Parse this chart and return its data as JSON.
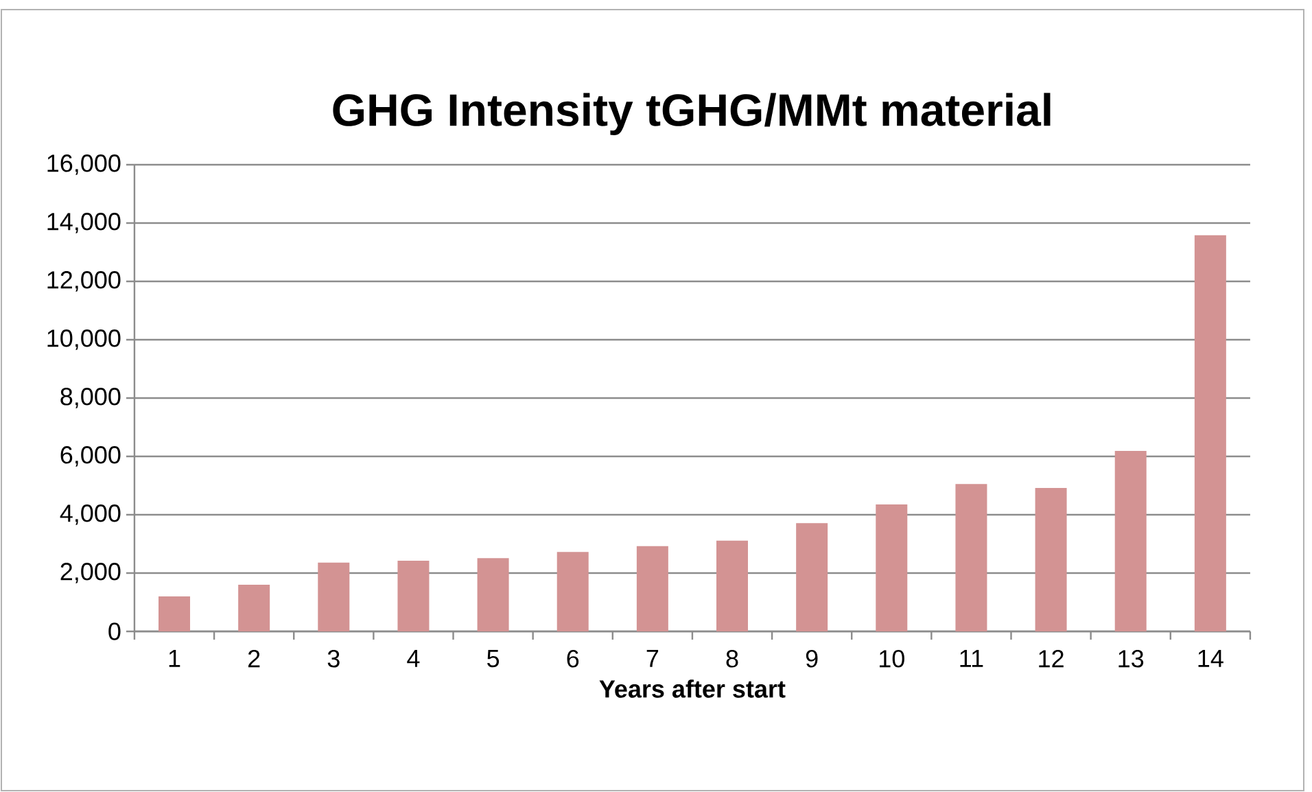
{
  "chart_data": {
    "type": "bar",
    "title": "GHG Intensity tGHG/MMt material",
    "xlabel": "Years after start",
    "categories": [
      "1",
      "2",
      "3",
      "4",
      "5",
      "6",
      "7",
      "8",
      "9",
      "10",
      "11",
      "12",
      "13",
      "14"
    ],
    "values": [
      1200,
      1600,
      2360,
      2420,
      2510,
      2720,
      2920,
      3110,
      3710,
      4350,
      5050,
      4920,
      6190,
      13580
    ],
    "color": "#d39393",
    "ylim": [
      0,
      16000
    ],
    "yticks": [
      {
        "value": 0,
        "label": "0"
      },
      {
        "value": 2000,
        "label": "2,000"
      },
      {
        "value": 4000,
        "label": "4,000"
      },
      {
        "value": 6000,
        "label": "6,000"
      },
      {
        "value": 8000,
        "label": "8,000"
      },
      {
        "value": 10000,
        "label": "10,000"
      },
      {
        "value": 12000,
        "label": "12,000"
      },
      {
        "value": 14000,
        "label": "14,000"
      },
      {
        "value": 16000,
        "label": "16,000"
      }
    ],
    "grid": "y"
  }
}
